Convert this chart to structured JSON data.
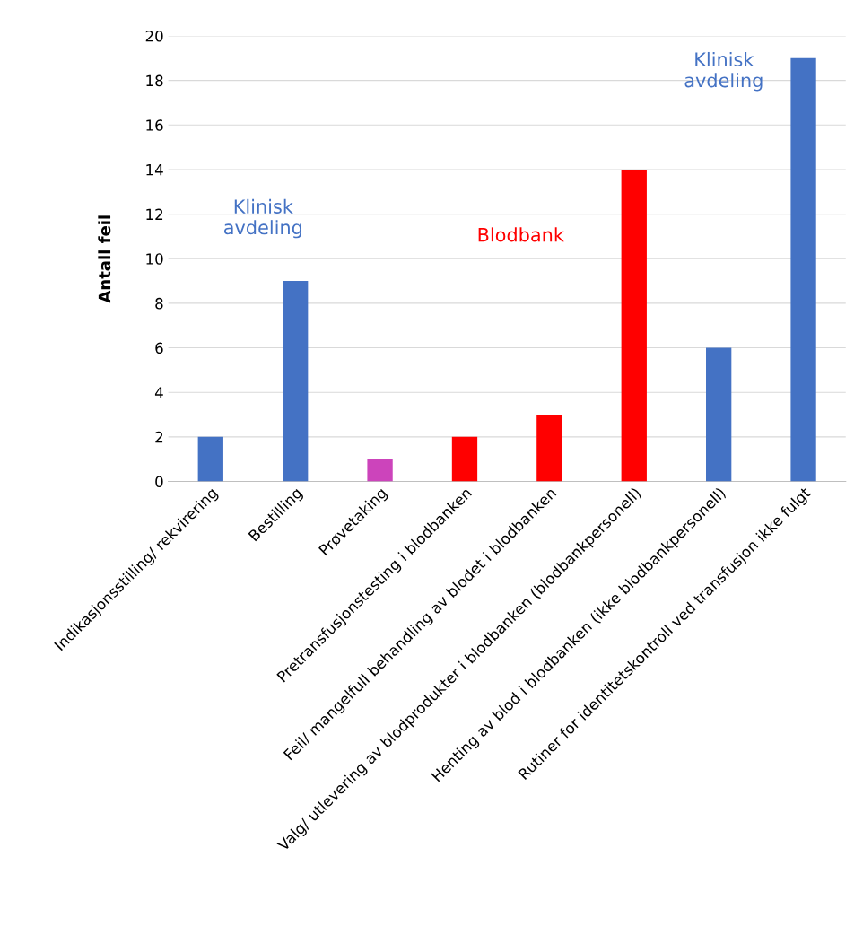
{
  "chart_data": {
    "type": "bar",
    "ylabel": "Antall feil",
    "categories": [
      "Indikasjonsstilling/ rekvirering",
      "Bestilling",
      "Prøvetaking",
      "Pretransfusjonstesting i blodbanken",
      "Feil/ mangelfull behandling av blodet i blodbanken",
      "Valg/ utlevering av blodprodukter i blodbanken (blodbankpersonell)",
      "Henting av blod i blodbanken (ikke blodbankpersonell)",
      "Rutiner for identitetskontroll ved transfusjon ikke fulgt"
    ],
    "values": [
      2,
      9,
      1,
      2,
      3,
      14,
      6,
      19
    ],
    "colors": [
      "#4472c4",
      "#4472c4",
      "#cc44bb",
      "#ff0000",
      "#ff0000",
      "#ff0000",
      "#4472c4",
      "#4472c4"
    ],
    "ylim": [
      0,
      20
    ],
    "yticks": [
      0,
      2,
      4,
      6,
      8,
      10,
      12,
      14,
      16,
      18,
      20
    ],
    "grid": "y",
    "annotations": [
      "Klinisk\navdeling",
      "Blodbank",
      "Klinisk\navdeling"
    ]
  }
}
